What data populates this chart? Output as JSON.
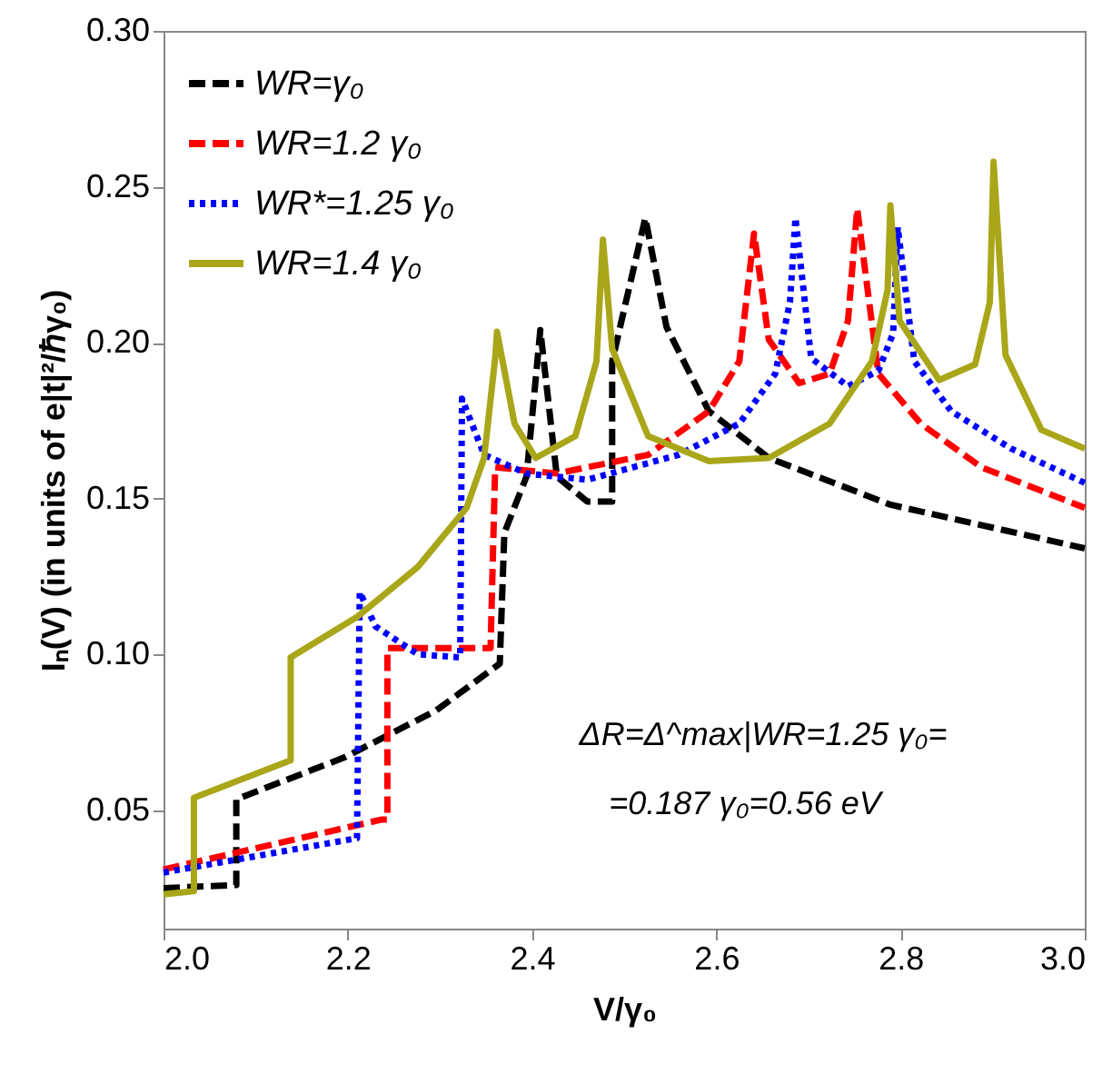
{
  "chart_data": {
    "type": "line",
    "xlabel": "V/γ₀",
    "ylabel": "Iₙ(V) (in units of e|t|²/ℏγ₀)",
    "xlim": [
      2.0,
      3.0
    ],
    "ylim": [
      0.012,
      0.3
    ],
    "xticks": [
      {
        "value": 2,
        "label": "2.0"
      },
      2.2,
      2.4,
      2.6,
      2.8,
      {
        "value": 3,
        "label": "3.0"
      }
    ],
    "yticks": [
      0.05,
      {
        "value": 0.1,
        "label": "0.10"
      },
      0.15,
      {
        "value": 0.2,
        "label": "0.20"
      },
      0.25,
      {
        "value": 0.3,
        "label": "0.30"
      }
    ],
    "grid": false,
    "legend": "top left",
    "annotations": [
      "ΔR=Δ^max|WR=1.25 γ₀=",
      "=0.187 γ₀=0.56  eV"
    ],
    "series": [
      {
        "name": "WR=γ₀",
        "color": "#000000",
        "line_style": "dashed",
        "x": [
          2.0,
          2.079,
          2.079,
          2.197,
          2.296,
          2.365,
          2.37,
          2.394,
          2.409,
          2.427,
          2.46,
          2.487,
          2.487,
          2.523,
          2.546,
          2.592,
          2.657,
          2.789,
          3.0
        ],
        "values": [
          0.025,
          0.026,
          0.0535,
          0.067,
          0.082,
          0.097,
          0.139,
          0.157,
          0.204,
          0.157,
          0.149,
          0.149,
          0.194,
          0.24,
          0.205,
          0.178,
          0.163,
          0.148,
          0.134
        ]
      },
      {
        "name": "WR=1.2 γ₀",
        "color": "#ff0000",
        "line_style": "dashed",
        "x": [
          2.0,
          2.237,
          2.243,
          2.243,
          2.355,
          2.36,
          2.427,
          2.526,
          2.592,
          2.625,
          2.641,
          2.657,
          2.69,
          2.723,
          2.743,
          2.753,
          2.776,
          2.822,
          2.888,
          3.0
        ],
        "values": [
          0.031,
          0.047,
          0.047,
          0.102,
          0.102,
          0.16,
          0.158,
          0.164,
          0.178,
          0.194,
          0.235,
          0.201,
          0.187,
          0.19,
          0.207,
          0.243,
          0.19,
          0.174,
          0.16,
          0.147
        ]
      },
      {
        "name": "WR*=1.25 γ₀",
        "color": "#0000ff",
        "line_style": "dotted",
        "x": [
          2.0,
          2.21,
          2.213,
          2.23,
          2.276,
          2.322,
          2.324,
          2.348,
          2.394,
          2.46,
          2.559,
          2.625,
          2.664,
          2.68,
          2.686,
          2.703,
          2.743,
          2.776,
          2.792,
          2.797,
          2.815,
          2.855,
          2.92,
          3.0
        ],
        "values": [
          0.03,
          0.041,
          0.12,
          0.109,
          0.1,
          0.099,
          0.182,
          0.164,
          0.158,
          0.156,
          0.164,
          0.174,
          0.19,
          0.213,
          0.24,
          0.195,
          0.186,
          0.191,
          0.203,
          0.237,
          0.194,
          0.178,
          0.166,
          0.155
        ]
      },
      {
        "name": "WR=1.4 γ₀",
        "color": "#a9a61a",
        "line_style": "solid",
        "x": [
          2.0,
          2.033,
          2.033,
          2.138,
          2.138,
          2.21,
          2.276,
          2.329,
          2.348,
          2.36,
          2.362,
          2.381,
          2.404,
          2.447,
          2.47,
          2.477,
          2.487,
          2.526,
          2.592,
          2.657,
          2.723,
          2.769,
          2.786,
          2.789,
          2.799,
          2.842,
          2.881,
          2.897,
          2.901,
          2.914,
          2.953,
          3.0
        ],
        "values": [
          0.023,
          0.024,
          0.054,
          0.066,
          0.099,
          0.112,
          0.128,
          0.147,
          0.163,
          0.195,
          0.2035,
          0.174,
          0.163,
          0.17,
          0.194,
          0.233,
          0.198,
          0.17,
          0.162,
          0.163,
          0.174,
          0.194,
          0.217,
          0.244,
          0.207,
          0.188,
          0.193,
          0.213,
          0.258,
          0.196,
          0.172,
          0.166
        ]
      }
    ]
  }
}
